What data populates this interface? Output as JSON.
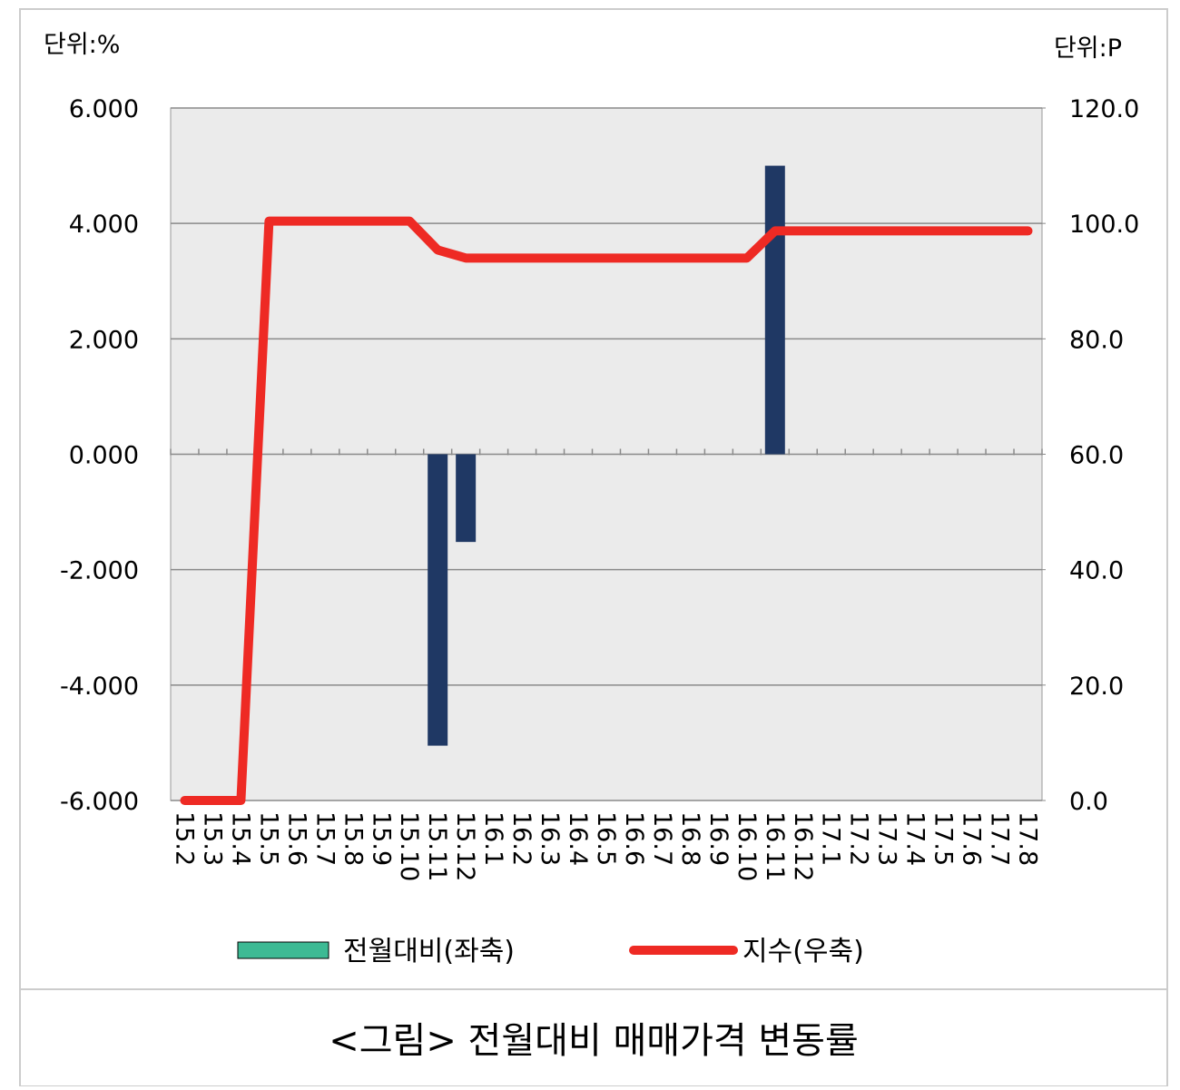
{
  "chart_data": {
    "type": "bar-line",
    "caption": "<그림> 전월대비 매매가격 변동률",
    "y_unit": "단위:%",
    "y2_unit": "단위:P",
    "categories": [
      "15.2",
      "15.3",
      "15.4",
      "15.5",
      "15.6",
      "15.7",
      "15.8",
      "15.9",
      "15.10",
      "15.11",
      "15.12",
      "16.1",
      "16.2",
      "16.3",
      "16.4",
      "16.5",
      "16.6",
      "16.7",
      "16.8",
      "16.9",
      "16.10",
      "16.11",
      "16.12",
      "17.1",
      "17.2",
      "17.3",
      "17.4",
      "17.5",
      "17.6",
      "17.7",
      "17.8"
    ],
    "series": [
      {
        "name": "전월대비(좌축)",
        "type": "bar",
        "color": "#1f3864",
        "legend_color": "#3dba94",
        "values": [
          0,
          0,
          0,
          0,
          0,
          0,
          0,
          0,
          0,
          -5.05,
          -1.52,
          0,
          0,
          0,
          0,
          0,
          0,
          0,
          0,
          0,
          0,
          5.0,
          0,
          0,
          0,
          0,
          0,
          0,
          0,
          0,
          0
        ]
      },
      {
        "name": "지수(우축)",
        "type": "line",
        "axis": "y2",
        "color": "#ee2a24",
        "values": [
          0,
          0,
          0,
          100.4,
          100.4,
          100.4,
          100.4,
          100.4,
          100.4,
          95.4,
          94.0,
          94.0,
          94.0,
          94.0,
          94.0,
          94.0,
          94.0,
          94.0,
          94.0,
          94.0,
          94.0,
          98.7,
          98.7,
          98.7,
          98.7,
          98.7,
          98.7,
          98.7,
          98.7,
          98.7,
          98.7
        ]
      }
    ],
    "ylim": [
      -6,
      6
    ],
    "yticks": [
      {
        "value": -6,
        "label": "-6.000"
      },
      {
        "value": -4,
        "label": "-4.000"
      },
      {
        "value": -2,
        "label": "-2.000"
      },
      {
        "value": 0,
        "label": "0.000"
      },
      {
        "value": 2,
        "label": "2.000"
      },
      {
        "value": 4,
        "label": "4.000"
      },
      {
        "value": 6,
        "label": "6.000"
      }
    ],
    "y2lim": [
      0,
      120
    ],
    "y2ticks": [
      {
        "value": 0,
        "label": "0.0"
      },
      {
        "value": 20,
        "label": "20.0"
      },
      {
        "value": 40,
        "label": "40.0"
      },
      {
        "value": 60,
        "label": "60.0"
      },
      {
        "value": 80,
        "label": "80.0"
      },
      {
        "value": 100,
        "label": "100.0"
      },
      {
        "value": 120,
        "label": "120.0"
      }
    ],
    "grid": true,
    "plot_background": "#ebebeb"
  }
}
